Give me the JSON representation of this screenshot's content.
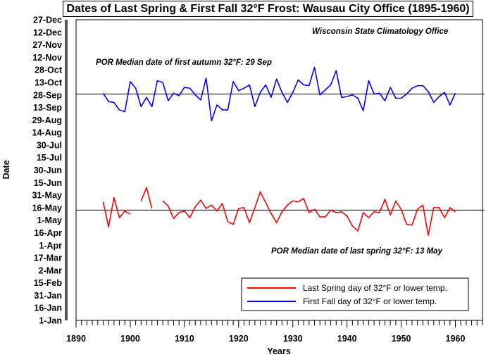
{
  "chart_data": {
    "type": "line",
    "title": "Dates of  Last Spring & First Fall 32°F Frost: Wausau City Office (1895-1960)",
    "subtitle": "Wisconsin State Climatology Office",
    "xlabel": "Years",
    "ylabel": "Date",
    "xlim": [
      1890,
      1965
    ],
    "x_ticks": [
      1890,
      1900,
      1910,
      1920,
      1930,
      1940,
      1950,
      1960
    ],
    "ylim_day_of_year": [
      1,
      361
    ],
    "y_tick_labels": [
      "1-Jan",
      "16-Jan",
      "31-Jan",
      "15-Feb",
      "2-Mar",
      "17-Mar",
      "1-Apr",
      "16-Apr",
      "1-May",
      "16-May",
      "31-May",
      "15-Jun",
      "30-Jun",
      "15-Jul",
      "30-Jul",
      "14-Aug",
      "29-Aug",
      "13-Sep",
      "28-Sep",
      "13-Oct",
      "28-Oct",
      "12-Nov",
      "27-Nov",
      "12-Dec",
      "27-Dec"
    ],
    "y_tick_values_day_of_year": [
      1,
      16,
      31,
      46,
      61,
      76,
      91,
      106,
      121,
      136,
      151,
      166,
      181,
      196,
      211,
      226,
      241,
      256,
      271,
      286,
      301,
      316,
      331,
      346,
      361
    ],
    "annotations": [
      {
        "text": "POR Median date of first autumn 32°F: 29 Sep",
        "day_of_year": 272
      },
      {
        "text": "POR Median date of last spring 32°F: 13 May",
        "day_of_year": 133
      }
    ],
    "legend_position": "bottom-right",
    "series": [
      {
        "name": "Last Spring day of 32°F or lower temp.",
        "color": "#ff0000",
        "x": [
          1895,
          1896,
          1897,
          1898,
          1899,
          1900,
          1901,
          1902,
          1903,
          1904,
          1905,
          1906,
          1907,
          1908,
          1909,
          1910,
          1911,
          1912,
          1913,
          1914,
          1915,
          1916,
          1917,
          1918,
          1919,
          1920,
          1921,
          1922,
          1923,
          1924,
          1925,
          1926,
          1927,
          1928,
          1929,
          1930,
          1931,
          1932,
          1933,
          1934,
          1935,
          1936,
          1937,
          1938,
          1939,
          1940,
          1941,
          1942,
          1943,
          1944,
          1945,
          1946,
          1947,
          1948,
          1949,
          1950,
          1951,
          1952,
          1953,
          1954,
          1955,
          1956,
          1957,
          1958,
          1959,
          1960
        ],
        "y": [
          143,
          113,
          148,
          124,
          132,
          128,
          null,
          144,
          160,
          135,
          null,
          144,
          138,
          123,
          130,
          132,
          124,
          137,
          145,
          135,
          139,
          132,
          141,
          119,
          116,
          135,
          136,
          118,
          136,
          155,
          142,
          129,
          118,
          131,
          139,
          144,
          143,
          147,
          130,
          134,
          125,
          125,
          133,
          130,
          131,
          126,
          114,
          108,
          130,
          124,
          131,
          130,
          146,
          127,
          144,
          134,
          116,
          115,
          134,
          139,
          103,
          136,
          136,
          124,
          136,
          131
        ]
      },
      {
        "name": "First Fall day of 32°F or lower temp.",
        "color": "#0000ff",
        "x": [
          1895,
          1896,
          1897,
          1898,
          1899,
          1900,
          1901,
          1902,
          1903,
          1904,
          1905,
          1906,
          1907,
          1908,
          1909,
          1910,
          1911,
          1912,
          1913,
          1914,
          1915,
          1916,
          1917,
          1918,
          1919,
          1920,
          1921,
          1922,
          1923,
          1924,
          1925,
          1926,
          1927,
          1928,
          1929,
          1930,
          1931,
          1932,
          1933,
          1934,
          1935,
          1936,
          1937,
          1938,
          1939,
          1940,
          1941,
          1942,
          1943,
          1944,
          1945,
          1946,
          1947,
          1948,
          1949,
          1950,
          1951,
          1952,
          1953,
          1954,
          1955,
          1956,
          1957,
          1958,
          1959,
          1960
        ],
        "y": [
          273,
          263,
          262,
          253,
          251,
          287,
          279,
          257,
          268,
          257,
          288,
          286,
          264,
          273,
          270,
          280,
          279,
          271,
          265,
          291,
          240,
          259,
          253,
          253,
          287,
          276,
          279,
          283,
          257,
          274,
          283,
          268,
          290,
          274,
          262,
          274,
          289,
          283,
          282,
          304,
          271,
          277,
          283,
          300,
          268,
          269,
          271,
          267,
          252,
          288,
          272,
          273,
          264,
          280,
          267,
          267,
          272,
          279,
          282,
          282,
          275,
          262,
          269,
          274,
          259,
          273
        ]
      }
    ]
  }
}
